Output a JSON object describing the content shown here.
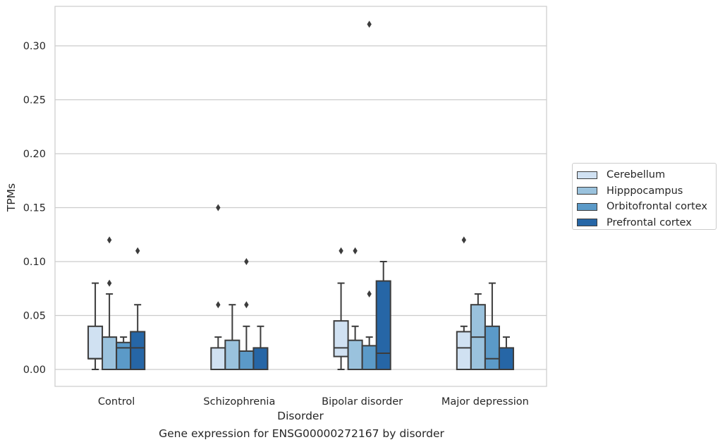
{
  "chart_data": {
    "type": "box",
    "title": "",
    "caption": "Gene expression for ENSG00000272167 by disorder",
    "xlabel": "Disorder",
    "ylabel": "TPMs",
    "ylim": [
      -0.015,
      0.337
    ],
    "yticks": [
      0.0,
      0.05,
      0.1,
      0.15,
      0.2,
      0.25,
      0.3
    ],
    "ytick_labels": [
      "0.00",
      "0.05",
      "0.10",
      "0.15",
      "0.20",
      "0.25",
      "0.30"
    ],
    "grid": "horizontal",
    "legend_position": "right",
    "categories": [
      "Control",
      "Schizophrenia",
      "Bipolar disorder",
      "Major depression"
    ],
    "series": [
      {
        "name": "Cerebellum",
        "color": "#d0e1f2",
        "boxes": [
          {
            "whisker_low": 0.0,
            "q1": 0.01,
            "median": 0.01,
            "q3": 0.04,
            "whisker_high": 0.08,
            "outliers": []
          },
          {
            "whisker_low": 0.0,
            "q1": 0.0,
            "median": 0.0,
            "q3": 0.02,
            "whisker_high": 0.03,
            "outliers": [
              0.06,
              0.15
            ]
          },
          {
            "whisker_low": 0.0,
            "q1": 0.012,
            "median": 0.02,
            "q3": 0.045,
            "whisker_high": 0.08,
            "outliers": [
              0.11
            ]
          },
          {
            "whisker_low": 0.0,
            "q1": 0.0,
            "median": 0.02,
            "q3": 0.035,
            "whisker_high": 0.04,
            "outliers": [
              0.12
            ]
          }
        ]
      },
      {
        "name": "Hipppocampus",
        "color": "#9ac2dd",
        "boxes": [
          {
            "whisker_low": 0.0,
            "q1": 0.0,
            "median": 0.0,
            "q3": 0.03,
            "whisker_high": 0.07,
            "outliers": [
              0.08,
              0.12
            ]
          },
          {
            "whisker_low": 0.0,
            "q1": 0.0,
            "median": 0.0,
            "q3": 0.027,
            "whisker_high": 0.06,
            "outliers": []
          },
          {
            "whisker_low": 0.0,
            "q1": 0.0,
            "median": 0.0,
            "q3": 0.027,
            "whisker_high": 0.04,
            "outliers": [
              0.11
            ]
          },
          {
            "whisker_low": 0.0,
            "q1": 0.0,
            "median": 0.03,
            "q3": 0.06,
            "whisker_high": 0.07,
            "outliers": []
          }
        ]
      },
      {
        "name": "Orbitofrontal cortex",
        "color": "#5b9ac8",
        "boxes": [
          {
            "whisker_low": 0.0,
            "q1": 0.0,
            "median": 0.02,
            "q3": 0.025,
            "whisker_high": 0.03,
            "outliers": []
          },
          {
            "whisker_low": 0.0,
            "q1": 0.0,
            "median": 0.0,
            "q3": 0.017,
            "whisker_high": 0.04,
            "outliers": [
              0.06,
              0.1
            ]
          },
          {
            "whisker_low": 0.0,
            "q1": 0.0,
            "median": 0.0,
            "q3": 0.022,
            "whisker_high": 0.03,
            "outliers": [
              0.07,
              0.32
            ]
          },
          {
            "whisker_low": 0.0,
            "q1": 0.0,
            "median": 0.01,
            "q3": 0.04,
            "whisker_high": 0.08,
            "outliers": []
          }
        ]
      },
      {
        "name": "Prefrontal cortex",
        "color": "#2666a6",
        "boxes": [
          {
            "whisker_low": 0.0,
            "q1": 0.0,
            "median": 0.02,
            "q3": 0.035,
            "whisker_high": 0.06,
            "outliers": [
              0.11
            ]
          },
          {
            "whisker_low": 0.0,
            "q1": 0.0,
            "median": 0.0,
            "q3": 0.02,
            "whisker_high": 0.04,
            "outliers": []
          },
          {
            "whisker_low": 0.0,
            "q1": 0.0,
            "median": 0.015,
            "q3": 0.082,
            "whisker_high": 0.1,
            "outliers": []
          },
          {
            "whisker_low": 0.0,
            "q1": 0.0,
            "median": 0.0,
            "q3": 0.02,
            "whisker_high": 0.03,
            "outliers": []
          }
        ]
      }
    ]
  }
}
